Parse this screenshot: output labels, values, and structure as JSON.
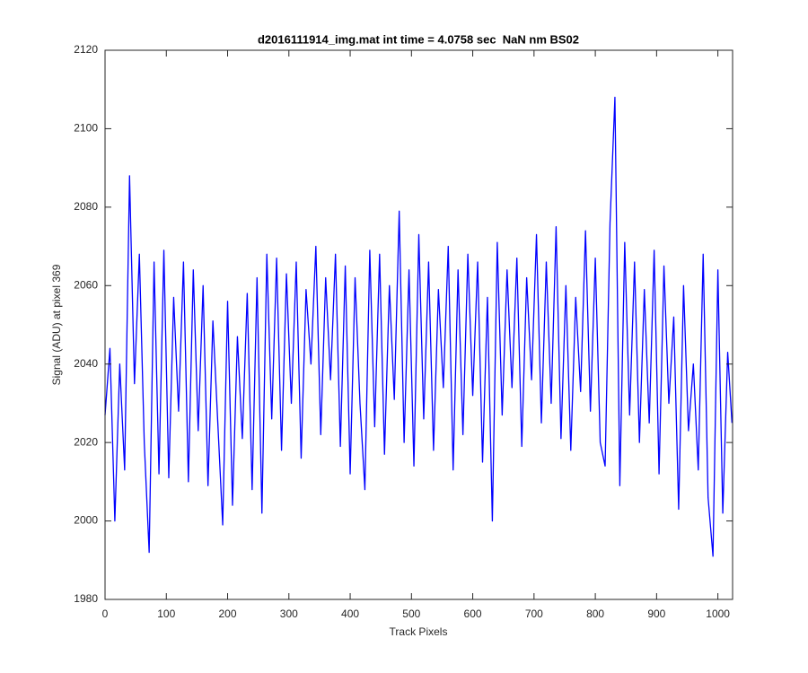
{
  "chart_data": {
    "type": "line",
    "title": "d2016111914_img.mat int time = 4.0758 sec  NaN nm BS02",
    "xlabel": "Track Pixels",
    "ylabel": "Signal (ADU) at pixel 369",
    "color": "#0000ff",
    "x": [
      0,
      8,
      16,
      24,
      32,
      40,
      48,
      56,
      64,
      72,
      80,
      88,
      96,
      104,
      112,
      120,
      128,
      136,
      144,
      152,
      160,
      168,
      176,
      184,
      192,
      200,
      208,
      216,
      224,
      232,
      240,
      248,
      256,
      264,
      272,
      280,
      288,
      296,
      304,
      312,
      320,
      328,
      336,
      344,
      352,
      360,
      368,
      376,
      384,
      392,
      400,
      408,
      416,
      424,
      432,
      440,
      448,
      456,
      464,
      472,
      480,
      488,
      496,
      504,
      512,
      520,
      528,
      536,
      544,
      552,
      560,
      568,
      576,
      584,
      592,
      600,
      608,
      616,
      624,
      632,
      640,
      648,
      656,
      664,
      672,
      680,
      688,
      696,
      704,
      712,
      720,
      728,
      736,
      744,
      752,
      760,
      768,
      776,
      784,
      792,
      800,
      808,
      816,
      824,
      832,
      840,
      848,
      856,
      864,
      872,
      880,
      888,
      896,
      904,
      912,
      920,
      928,
      936,
      944,
      952,
      960,
      968,
      976,
      984,
      992,
      1000,
      1008,
      1016,
      1023
    ],
    "values": [
      2027,
      2044,
      2000,
      2040,
      2013,
      2088,
      2035,
      2068,
      2020,
      1992,
      2066,
      2012,
      2069,
      2011,
      2057,
      2028,
      2066,
      2010,
      2064,
      2023,
      2060,
      2009,
      2051,
      2025,
      1999,
      2056,
      2004,
      2047,
      2021,
      2058,
      2008,
      2062,
      2002,
      2068,
      2026,
      2067,
      2018,
      2063,
      2030,
      2066,
      2016,
      2059,
      2040,
      2070,
      2022,
      2062,
      2036,
      2068,
      2019,
      2065,
      2012,
      2062,
      2030,
      2008,
      2069,
      2024,
      2068,
      2017,
      2060,
      2031,
      2079,
      2020,
      2064,
      2014,
      2073,
      2026,
      2066,
      2018,
      2059,
      2034,
      2070,
      2013,
      2064,
      2022,
      2068,
      2032,
      2066,
      2015,
      2057,
      2000,
      2071,
      2027,
      2064,
      2034,
      2067,
      2019,
      2062,
      2036,
      2073,
      2025,
      2066,
      2030,
      2075,
      2021,
      2060,
      2018,
      2057,
      2033,
      2074,
      2028,
      2067,
      2020,
      2014,
      2076,
      2108,
      2009,
      2071,
      2027,
      2066,
      2020,
      2059,
      2025,
      2069,
      2012,
      2065,
      2030,
      2052,
      2003,
      2060,
      2023,
      2040,
      2013,
      2068,
      2006,
      1991,
      2064,
      2002,
      2043,
      2025
    ],
    "xlim": [
      0,
      1024
    ],
    "ylim": [
      1980,
      2120
    ],
    "xticks": [
      0,
      100,
      200,
      300,
      400,
      500,
      600,
      700,
      800,
      900,
      1000
    ],
    "yticks": [
      1980,
      2000,
      2020,
      2040,
      2060,
      2080,
      2100,
      2120
    ]
  }
}
